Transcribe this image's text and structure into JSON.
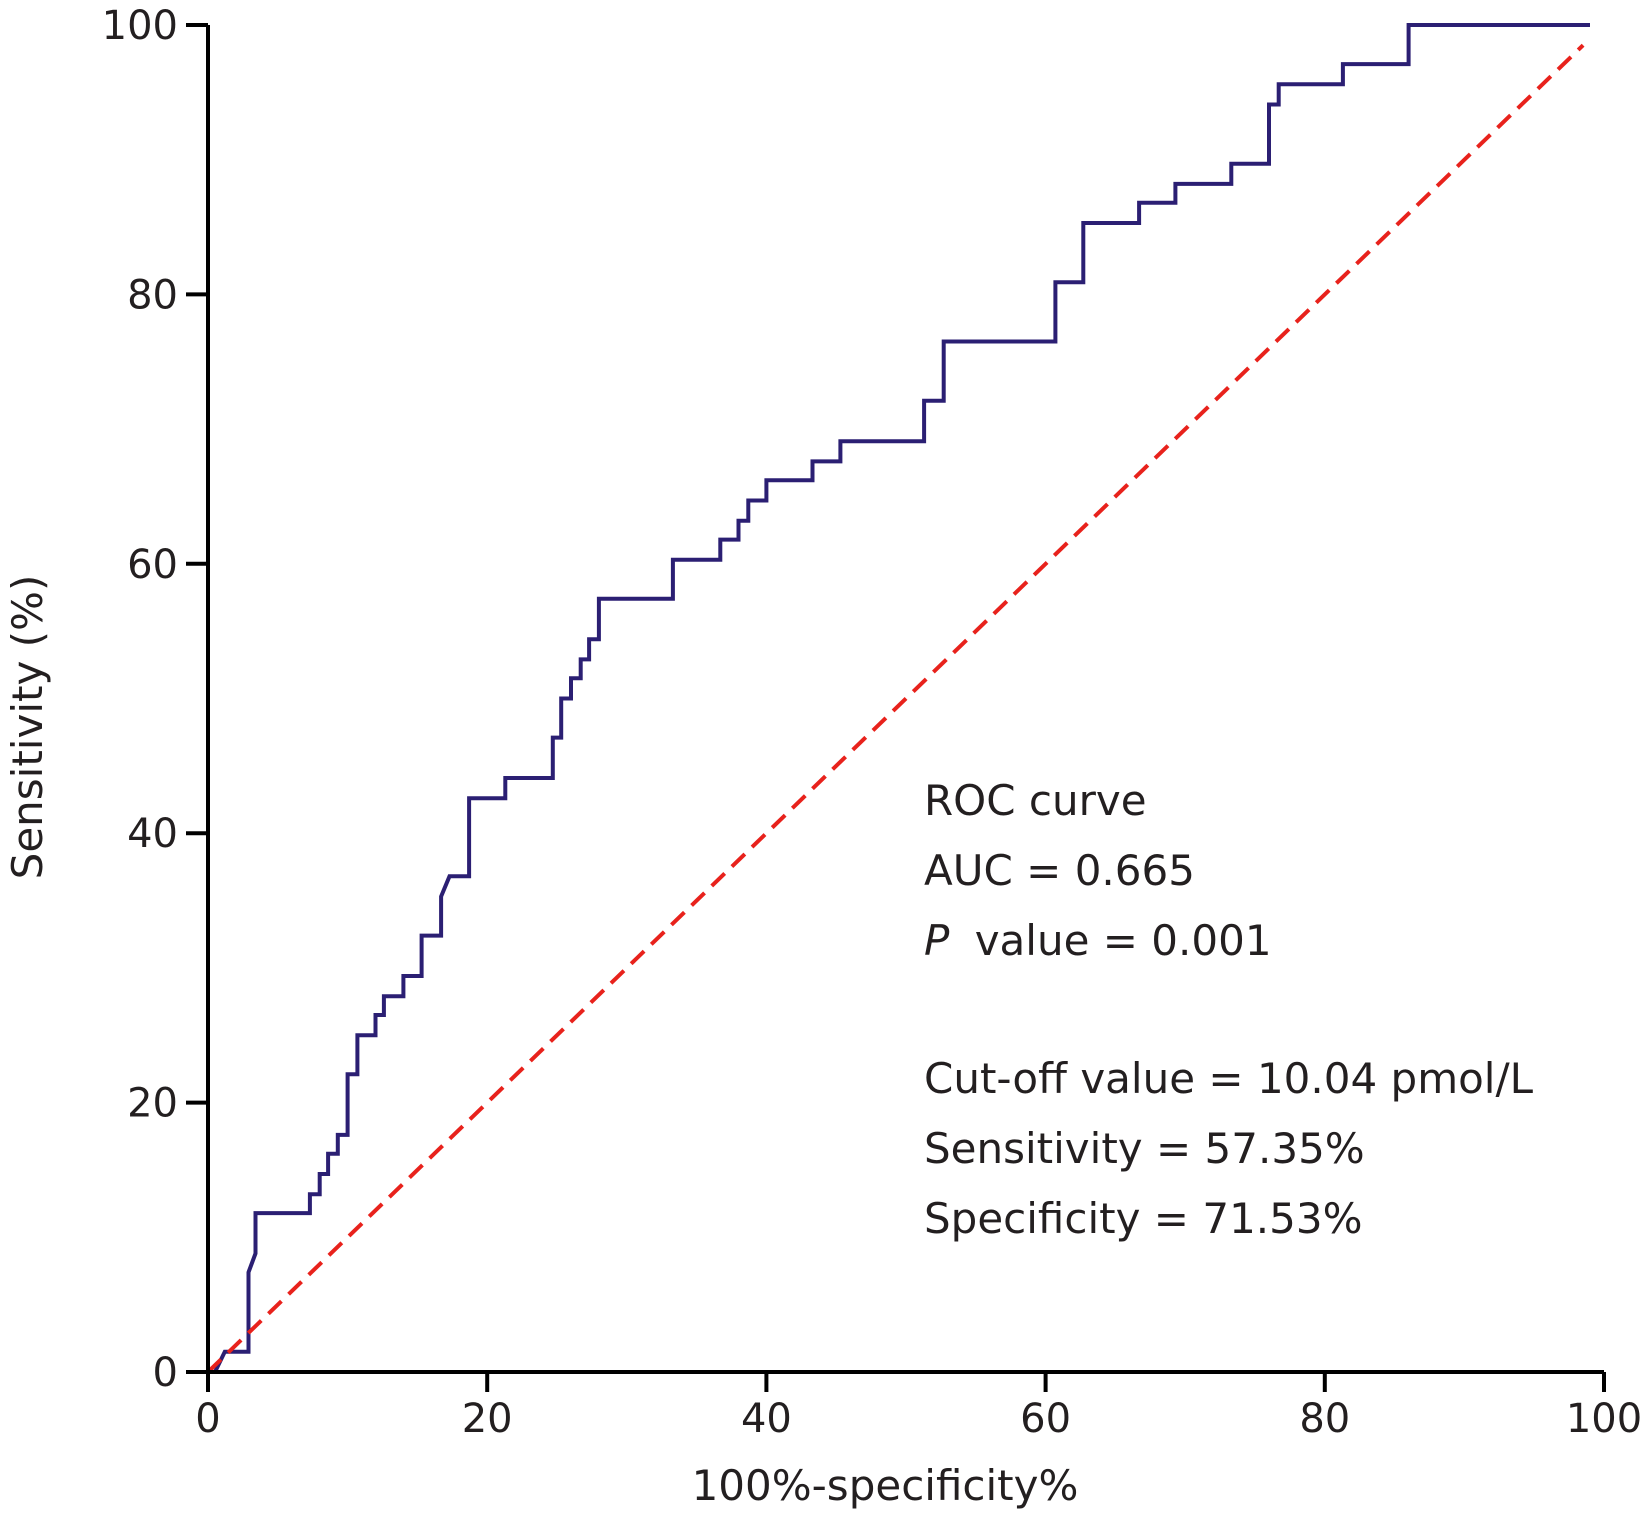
{
  "chart_data": {
    "type": "line",
    "title": "",
    "xlabel": "100%-specificity%",
    "ylabel": "Sensitivity (%)",
    "xlim": [
      0,
      100
    ],
    "ylim": [
      0,
      100
    ],
    "x_ticks": [
      "0",
      "20",
      "40",
      "60",
      "80",
      "100"
    ],
    "y_ticks": [
      "0",
      "20",
      "40",
      "60",
      "80",
      "100"
    ],
    "grid": false,
    "colors": {
      "roc": "#2b1f73",
      "reference": "#e8221c",
      "axis": "#000000"
    },
    "series": [
      {
        "style": "solid",
        "points": [
          [
            0.5,
            0
          ],
          [
            1.2,
            1.5
          ],
          [
            2.9,
            1.5
          ],
          [
            2.9,
            7.4
          ],
          [
            3.4,
            8.8
          ],
          [
            3.4,
            11.8
          ],
          [
            7.3,
            11.8
          ],
          [
            7.3,
            13.2
          ],
          [
            8.0,
            13.2
          ],
          [
            8.0,
            14.7
          ],
          [
            8.6,
            14.7
          ],
          [
            8.6,
            16.2
          ],
          [
            9.3,
            16.2
          ],
          [
            9.3,
            17.6
          ],
          [
            10.0,
            17.6
          ],
          [
            10.0,
            22.1
          ],
          [
            10.7,
            22.1
          ],
          [
            10.7,
            25.0
          ],
          [
            12.0,
            25.0
          ],
          [
            12.0,
            26.5
          ],
          [
            12.6,
            26.5
          ],
          [
            12.6,
            27.9
          ],
          [
            14.0,
            27.9
          ],
          [
            14.0,
            29.4
          ],
          [
            15.3,
            29.4
          ],
          [
            15.3,
            32.4
          ],
          [
            16.7,
            32.4
          ],
          [
            16.7,
            35.3
          ],
          [
            17.3,
            36.8
          ],
          [
            18.7,
            36.8
          ],
          [
            18.7,
            42.6
          ],
          [
            21.3,
            42.6
          ],
          [
            21.3,
            44.1
          ],
          [
            24.7,
            44.1
          ],
          [
            24.7,
            47.1
          ],
          [
            25.3,
            47.1
          ],
          [
            25.3,
            50.0
          ],
          [
            26.0,
            50.0
          ],
          [
            26.0,
            51.5
          ],
          [
            26.7,
            51.5
          ],
          [
            26.7,
            52.9
          ],
          [
            27.3,
            52.9
          ],
          [
            27.3,
            54.4
          ],
          [
            28.0,
            54.4
          ],
          [
            28.0,
            57.4
          ],
          [
            33.3,
            57.4
          ],
          [
            33.3,
            60.3
          ],
          [
            36.7,
            60.3
          ],
          [
            36.7,
            61.8
          ],
          [
            38.0,
            61.8
          ],
          [
            38.0,
            63.2
          ],
          [
            38.7,
            63.2
          ],
          [
            38.7,
            64.7
          ],
          [
            40.0,
            64.7
          ],
          [
            40.0,
            66.2
          ],
          [
            43.3,
            66.2
          ],
          [
            43.3,
            67.6
          ],
          [
            45.3,
            67.6
          ],
          [
            45.3,
            69.1
          ],
          [
            51.3,
            69.1
          ],
          [
            51.3,
            72.1
          ],
          [
            52.7,
            72.1
          ],
          [
            52.7,
            76.5
          ],
          [
            60.7,
            76.5
          ],
          [
            60.7,
            80.9
          ],
          [
            62.7,
            80.9
          ],
          [
            62.7,
            85.3
          ],
          [
            66.7,
            85.3
          ],
          [
            66.7,
            86.8
          ],
          [
            69.3,
            86.8
          ],
          [
            69.3,
            88.2
          ],
          [
            73.3,
            88.2
          ],
          [
            73.3,
            89.7
          ],
          [
            76.0,
            89.7
          ],
          [
            76.0,
            94.1
          ],
          [
            76.7,
            94.1
          ],
          [
            76.7,
            95.6
          ],
          [
            81.3,
            95.6
          ],
          [
            81.3,
            97.1
          ],
          [
            86.0,
            97.1
          ],
          [
            86.0,
            100
          ],
          [
            99.0,
            100
          ]
        ]
      },
      {
        "style": "dashed",
        "points": [
          [
            0,
            0
          ],
          [
            98.5,
            98.5
          ]
        ]
      }
    ],
    "annotations": [
      "ROC curve",
      "AUC = 0.665",
      "value = 0.001",
      "Cut-off value = 10.04 pmol/L",
      "Sensitivity = 57.35%",
      "Specificity = 71.53%"
    ],
    "annotation_p_symbol": "P"
  }
}
